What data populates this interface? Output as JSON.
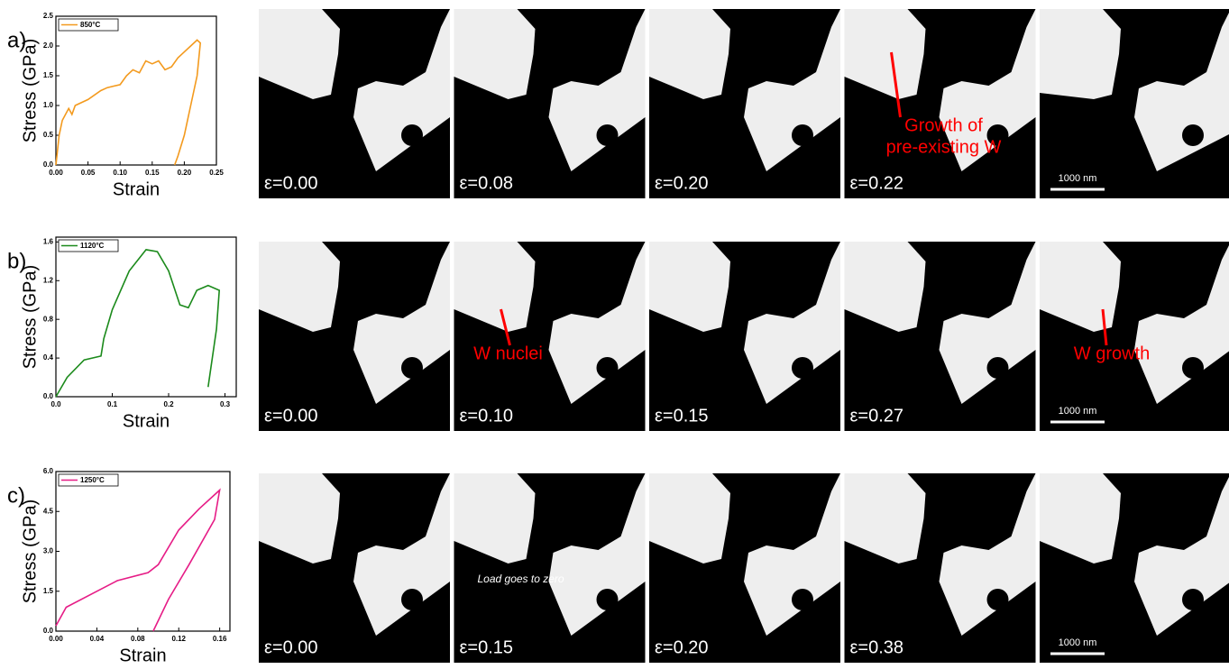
{
  "chart_data": [
    {
      "type": "line",
      "panel_label": "a)",
      "xlabel": "Strain",
      "ylabel": "Stress (GPa)",
      "legend": "upper left",
      "xlim": [
        0,
        0.25
      ],
      "xticks": [
        {
          "value": 0,
          "label": "0.00"
        },
        0.05,
        {
          "value": 0.1,
          "label": "0.10"
        },
        0.15,
        {
          "value": 0.2,
          "label": "0.20"
        },
        0.25
      ],
      "ylim": [
        0,
        2.5
      ],
      "yticks": [
        {
          "value": 0,
          "label": "0.0"
        },
        0.5,
        {
          "value": 1,
          "label": "1.0"
        },
        1.5,
        {
          "value": 2,
          "label": "2.0"
        },
        2.5
      ],
      "x": [
        0,
        0.005,
        0.01,
        0.02,
        0.025,
        0.03,
        0.05,
        0.07,
        0.08,
        0.1,
        0.11,
        0.12,
        0.13,
        0.14,
        0.15,
        0.16,
        0.17,
        0.18,
        0.19,
        0.2,
        0.21,
        0.22,
        0.225,
        0.22,
        0.21,
        0.2,
        0.19,
        0.185
      ],
      "series": [
        {
          "name": "850°C",
          "color": "#f39a1e",
          "values": [
            0,
            0.5,
            0.75,
            0.95,
            0.85,
            1.0,
            1.1,
            1.25,
            1.3,
            1.35,
            1.5,
            1.6,
            1.55,
            1.75,
            1.7,
            1.75,
            1.6,
            1.65,
            1.8,
            1.9,
            2.0,
            2.1,
            2.05,
            1.5,
            1.0,
            0.5,
            0.15,
            0
          ]
        }
      ]
    },
    {
      "type": "line",
      "panel_label": "b)",
      "xlabel": "Strain",
      "ylabel": "Stress (GPa)",
      "legend": "upper left",
      "xlim": [
        0,
        0.32
      ],
      "xticks": [
        {
          "value": 0,
          "label": "0.0"
        },
        0.1,
        0.2,
        0.3
      ],
      "ylim": [
        0,
        1.65
      ],
      "yticks": [
        {
          "value": 0,
          "label": "0.0"
        },
        0.4,
        0.8,
        1.2,
        1.6
      ],
      "x": [
        0,
        0.02,
        0.05,
        0.08,
        0.085,
        0.1,
        0.13,
        0.16,
        0.18,
        0.2,
        0.22,
        0.235,
        0.25,
        0.27,
        0.29,
        0.285,
        0.275,
        0.27
      ],
      "series": [
        {
          "name": "1120°C",
          "color": "#1b8a1b",
          "values": [
            0,
            0.2,
            0.38,
            0.42,
            0.6,
            0.9,
            1.3,
            1.52,
            1.5,
            1.3,
            0.95,
            0.92,
            1.1,
            1.15,
            1.1,
            0.7,
            0.3,
            0.1
          ]
        }
      ]
    },
    {
      "type": "line",
      "panel_label": "c)",
      "xlabel": "Strain",
      "ylabel": "Stress (GPa)",
      "legend": "upper left",
      "xlim": [
        0,
        0.17
      ],
      "xticks": [
        {
          "value": 0,
          "label": "0.00"
        },
        0.04,
        0.08,
        0.12,
        0.16
      ],
      "ylim": [
        0,
        6
      ],
      "yticks": [
        {
          "value": 0,
          "label": "0.0"
        },
        1.5,
        {
          "value": 3,
          "label": "3.0"
        },
        4.5,
        {
          "value": 6,
          "label": "6.0"
        }
      ],
      "x": [
        0,
        0.01,
        0.04,
        0.06,
        0.09,
        0.1,
        0.12,
        0.14,
        0.16,
        0.155,
        0.13,
        0.11,
        0.095
      ],
      "series": [
        {
          "name": "1250°C",
          "color": "#e61c86",
          "values": [
            0.2,
            0.9,
            1.5,
            1.9,
            2.2,
            2.5,
            3.8,
            4.6,
            5.3,
            4.2,
            2.5,
            1.2,
            0
          ]
        }
      ]
    }
  ],
  "rows": [
    {
      "frames": [
        {
          "strain": "ε=0.00"
        },
        {
          "strain": "ε=0.08"
        },
        {
          "strain": "ε=0.20"
        },
        {
          "strain": "ε=0.22",
          "annotation": [
            "Growth of",
            "pre-existing W"
          ]
        },
        {
          "scale_bar": "1000 nm"
        }
      ]
    },
    {
      "frames": [
        {
          "strain": "ε=0.00"
        },
        {
          "strain": "ε=0.10",
          "annotation": [
            "W nuclei"
          ]
        },
        {
          "strain": "ε=0.15"
        },
        {
          "strain": "ε=0.27"
        },
        {
          "scale_bar": "1000 nm",
          "annotation": [
            "W growth"
          ]
        }
      ]
    },
    {
      "frames": [
        {
          "strain": "ε=0.00"
        },
        {
          "strain": "ε=0.15",
          "note": "Load goes to zero"
        },
        {
          "strain": "ε=0.20"
        },
        {
          "strain": "ε=0.38"
        },
        {
          "scale_bar": "1000 nm"
        }
      ]
    }
  ]
}
